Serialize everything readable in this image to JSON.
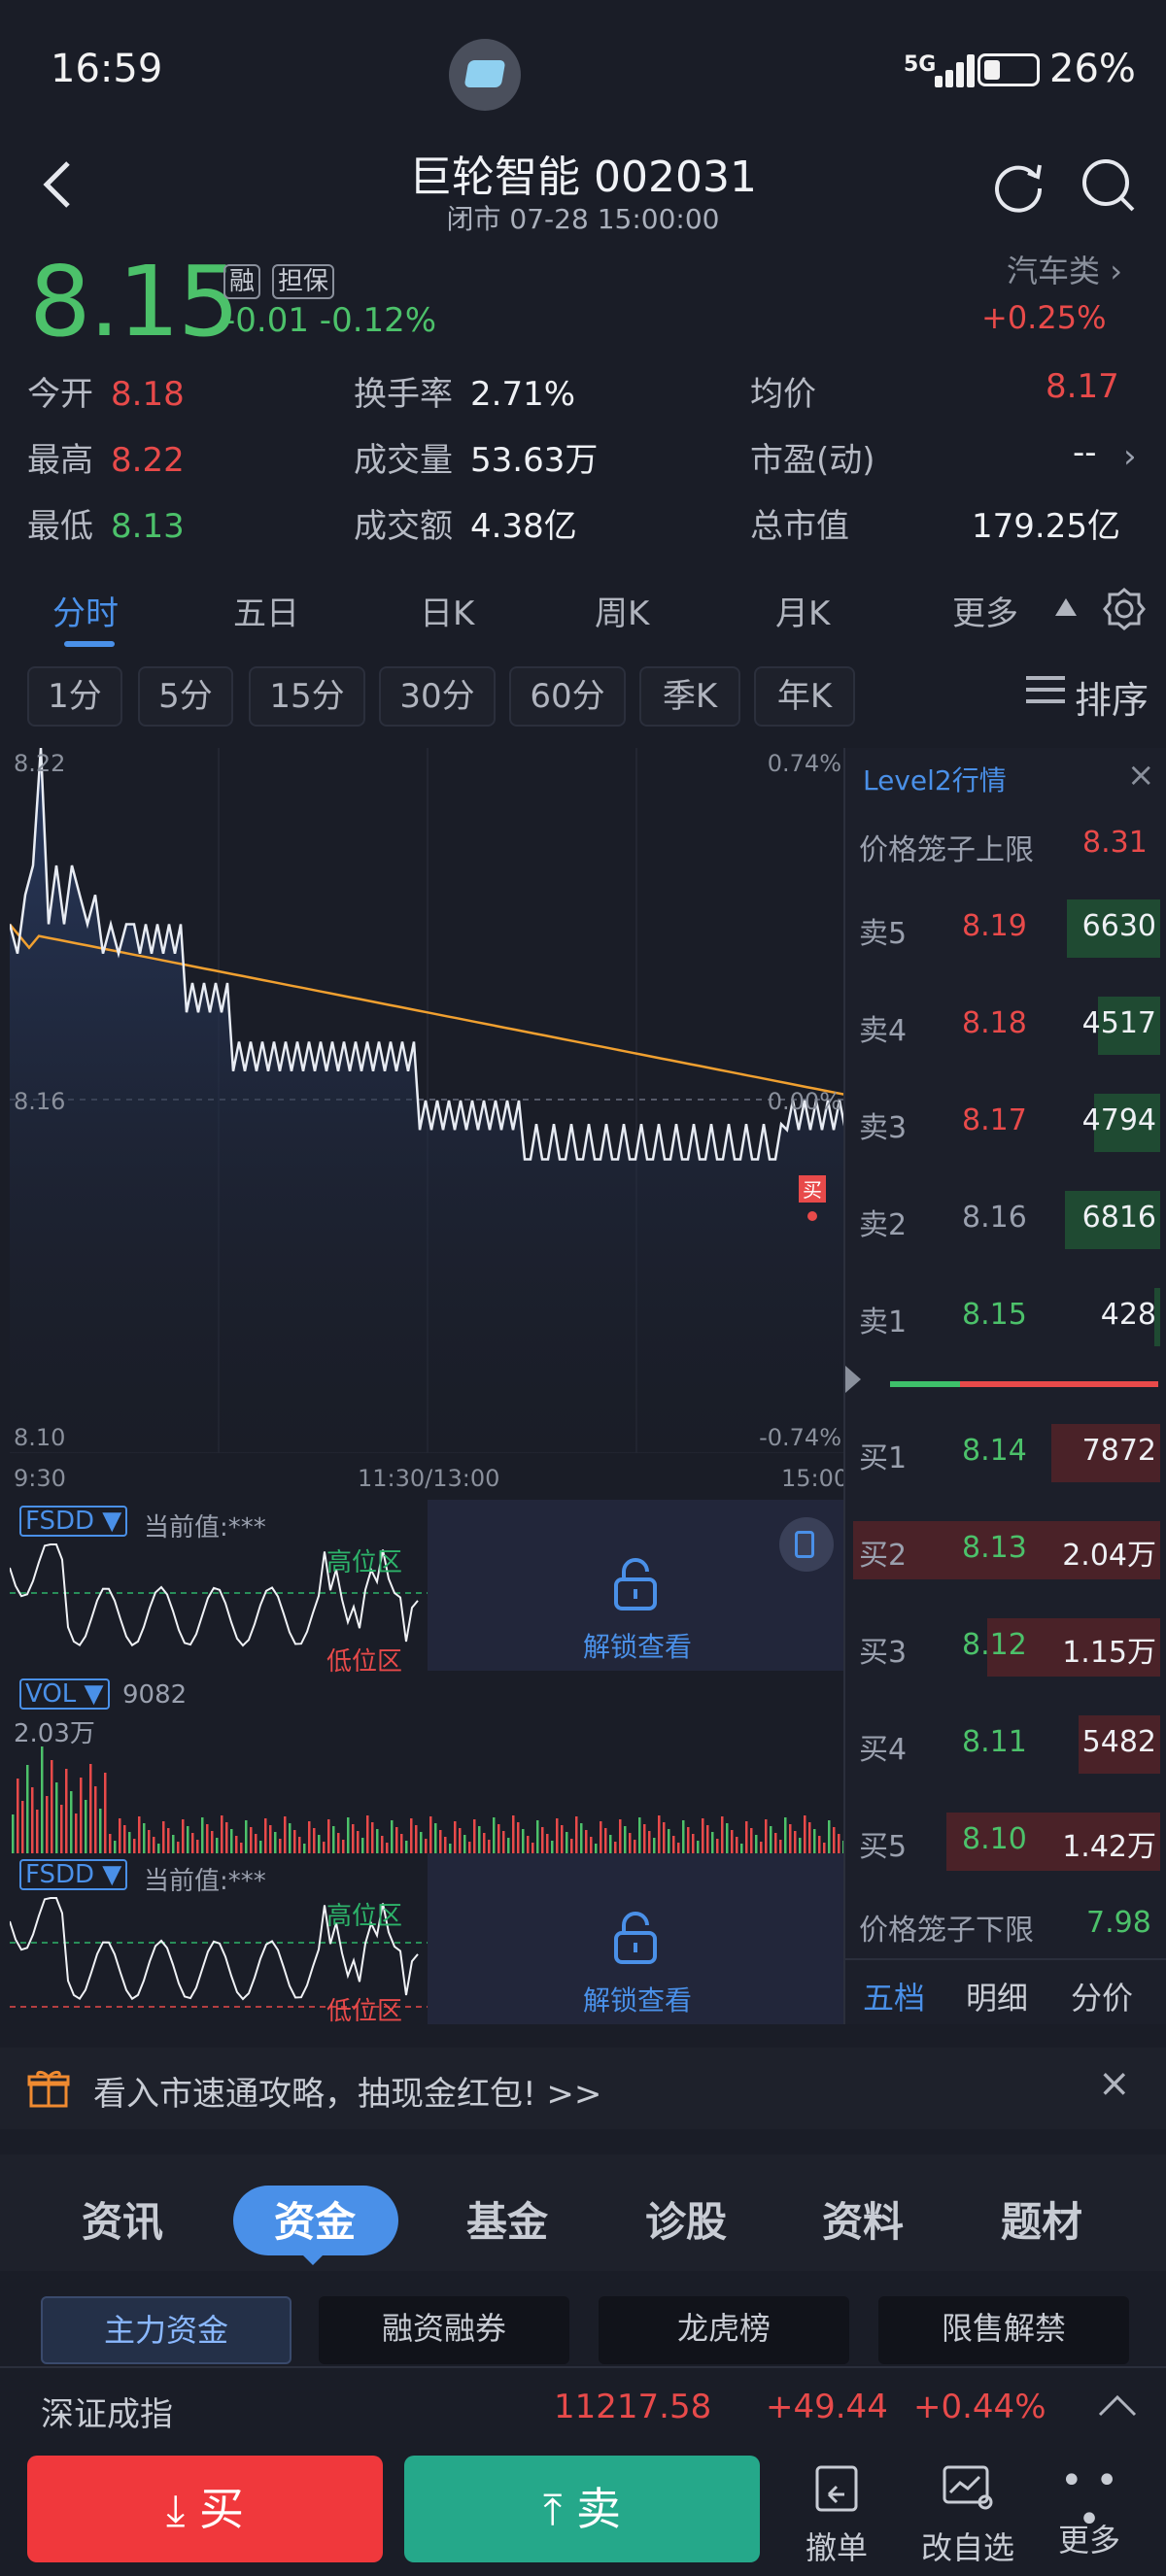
{
  "status": {
    "time": "16:59",
    "network": "5G",
    "battery": "26%"
  },
  "header": {
    "title": "巨轮智能 002031",
    "subtitle": "闭市 07-28 15:00:00"
  },
  "quote": {
    "price": "8.15",
    "tag1": "融",
    "tag2": "担保",
    "change": "-0.01",
    "change_pct": "-0.12%",
    "sector": "汽车类",
    "sector_change": "+0.25%"
  },
  "stats": [
    {
      "k": "今开",
      "v": "8.18"
    },
    {
      "k": "换手率",
      "v": "2.71%"
    },
    {
      "k": "均价",
      "v": "8.17"
    },
    {
      "k": "最高",
      "v": "8.22"
    },
    {
      "k": "成交量",
      "v": "53.63万"
    },
    {
      "k": "市盈(动)",
      "v": "--"
    },
    {
      "k": "最低",
      "v": "8.13"
    },
    {
      "k": "成交额",
      "v": "4.38亿"
    },
    {
      "k": "总市值",
      "v": "179.25亿"
    }
  ],
  "tabs": [
    "分时",
    "五日",
    "日K",
    "周K",
    "月K",
    "更多"
  ],
  "subtabs": [
    "1分",
    "5分",
    "15分",
    "30分",
    "60分",
    "季K",
    "年K"
  ],
  "sort_label": "排序",
  "chart": {
    "y_top": "8.22",
    "y_mid": "8.16",
    "y_bot": "8.10",
    "pct_top": "0.74%",
    "pct_mid": "0.00%",
    "pct_bot": "-0.74%",
    "x_start": "9:30",
    "x_mid": "11:30/13:00",
    "x_end": "15:00",
    "buy_marker": "买"
  },
  "fsdd": {
    "label": "FSDD ▼",
    "value": "当前值:***",
    "high": "高位区",
    "low": "低位区",
    "unlock": "解锁查看"
  },
  "vol": {
    "label": "VOL ▼",
    "value": "9082",
    "max": "2.03万"
  },
  "level2": {
    "title": "Level2行情",
    "upper_label": "价格笼子上限",
    "upper": "8.31",
    "lower_label": "价格笼子下限",
    "lower": "7.98",
    "asks": [
      {
        "l": "卖5",
        "p": "8.19",
        "v": "6630"
      },
      {
        "l": "卖4",
        "p": "8.18",
        "v": "4517"
      },
      {
        "l": "卖3",
        "p": "8.17",
        "v": "4794"
      },
      {
        "l": "卖2",
        "p": "8.16",
        "v": "6816"
      },
      {
        "l": "卖1",
        "p": "8.15",
        "v": "428"
      }
    ],
    "bids": [
      {
        "l": "买1",
        "p": "8.14",
        "v": "7872"
      },
      {
        "l": "买2",
        "p": "8.13",
        "v": "2.04万"
      },
      {
        "l": "买3",
        "p": "8.12",
        "v": "1.15万"
      },
      {
        "l": "买4",
        "p": "8.11",
        "v": "5482"
      },
      {
        "l": "买5",
        "p": "8.10",
        "v": "1.42万"
      }
    ],
    "footer": [
      "五档",
      "明细",
      "分价"
    ]
  },
  "banner": {
    "text": "看入市速通攻略，抽现金红包! >>"
  },
  "bottom_tabs": [
    "资讯",
    "资金",
    "基金",
    "诊股",
    "资料",
    "题材"
  ],
  "pills": [
    "主力资金",
    "融资融券",
    "龙虎榜",
    "限售解禁"
  ],
  "index": {
    "name": "深证成指",
    "value": "11217.58",
    "change": "+49.44",
    "pct": "+0.44%"
  },
  "actions": {
    "buy": "买",
    "sell": "卖",
    "cancel": "撤单",
    "edit": "改自选",
    "more": "更多"
  },
  "colors": {
    "up": "#e84a4a",
    "down": "#4cc16a",
    "accent": "#4a90e8",
    "avg_line": "#f0a030"
  }
}
